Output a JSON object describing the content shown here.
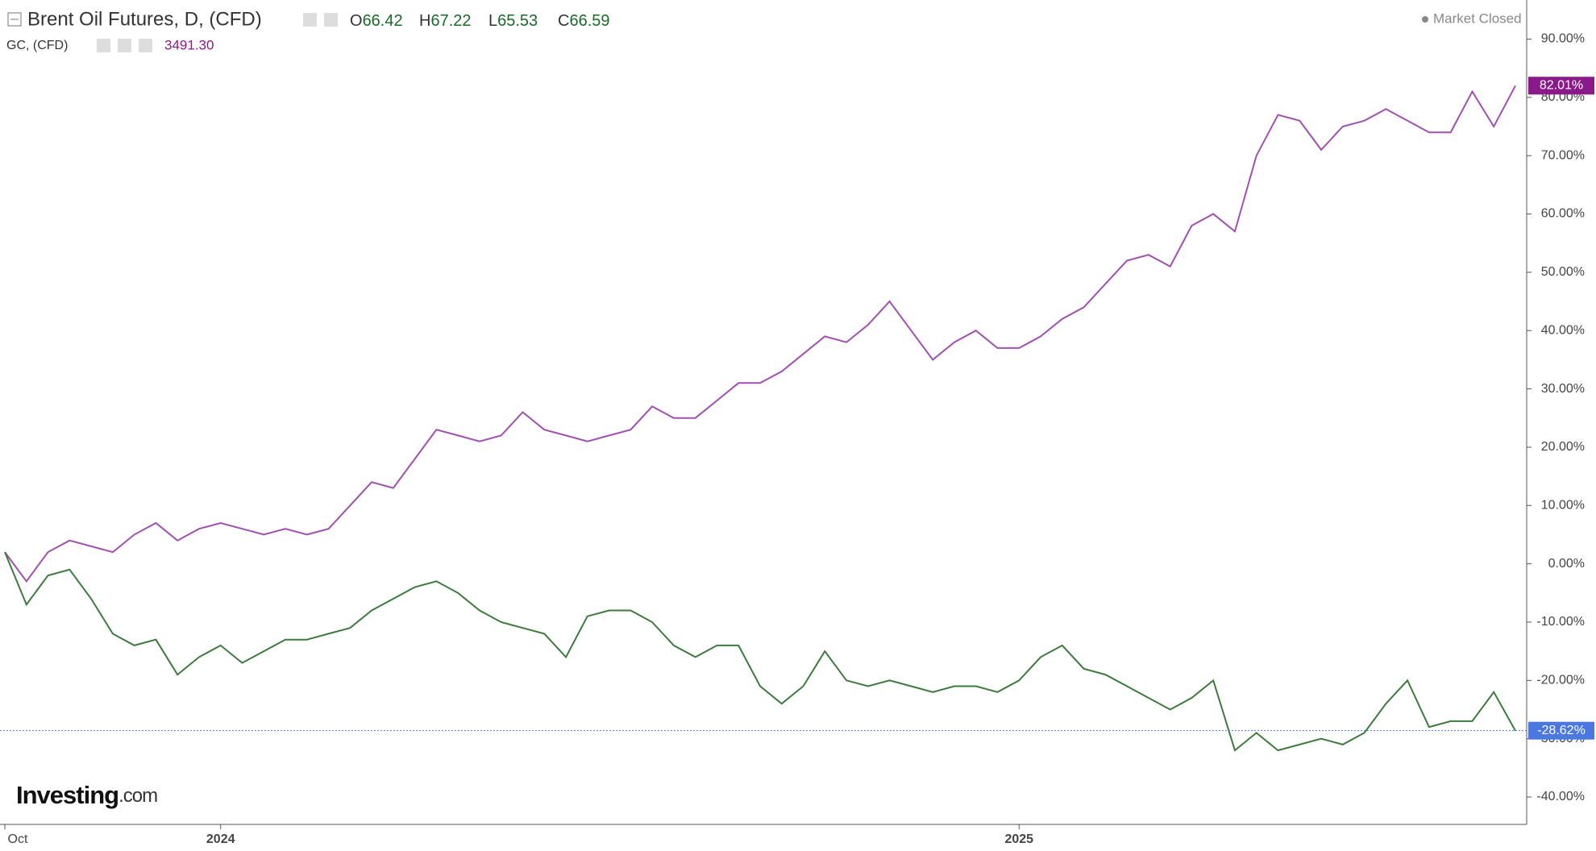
{
  "chart_data": {
    "type": "line",
    "title": "Brent Oil Futures, D, (CFD)",
    "ohlc": [
      {
        "label": "O",
        "value": 66.42
      },
      {
        "label": "H",
        "value": 67.22
      },
      {
        "label": "L",
        "value": 65.53
      },
      {
        "label": "C",
        "value": 66.59
      }
    ],
    "compare_name": "GC, (CFD)",
    "compare_value": "3491.30",
    "status": "Market Closed",
    "brand": {
      "main": "Investing",
      "suffix": ".com"
    },
    "categories": [
      "Oct",
      null,
      null,
      null,
      null,
      null,
      null,
      null,
      null,
      null,
      "2024",
      null,
      null,
      null,
      null,
      null,
      null,
      null,
      null,
      null,
      null,
      null,
      null,
      null,
      null,
      null,
      null,
      null,
      null,
      null,
      null,
      null,
      null,
      null,
      null,
      null,
      null,
      null,
      null,
      null,
      null,
      null,
      null,
      null,
      null,
      null,
      null,
      "2025",
      null,
      null,
      null,
      null,
      null,
      null,
      null,
      null,
      null,
      null,
      null,
      null,
      null,
      null,
      null,
      null,
      null,
      null,
      null,
      null,
      null,
      null,
      null
    ],
    "series": [
      {
        "name": "GC, (CFD)",
        "color": "#a050b0",
        "last_value_label": "82.01%",
        "label_color": "#8a1a8a",
        "values": [
          2,
          -3,
          2,
          4,
          3,
          2,
          5,
          7,
          4,
          6,
          7,
          6,
          5,
          6,
          5,
          6,
          10,
          14,
          13,
          18,
          23,
          22,
          21,
          22,
          26,
          23,
          22,
          21,
          22,
          23,
          27,
          25,
          25,
          28,
          31,
          31,
          33,
          36,
          39,
          38,
          41,
          45,
          40,
          35,
          38,
          40,
          37,
          37,
          39,
          42,
          44,
          48,
          52,
          53,
          51,
          58,
          60,
          57,
          70,
          77,
          76,
          71,
          75,
          76,
          78,
          76,
          74,
          74,
          81,
          75,
          82.01
        ]
      },
      {
        "name": "Brent Oil Futures, D, (CFD)",
        "color": "#3d7a3d",
        "last_value_label": "-28.62%",
        "label_color": "#4a78e0",
        "values": [
          2,
          -7,
          -2,
          -1,
          -6,
          -12,
          -14,
          -13,
          -19,
          -16,
          -14,
          -17,
          -15,
          -13,
          -13,
          -12,
          -11,
          -8,
          -6,
          -4,
          -3,
          -5,
          -8,
          -10,
          -11,
          -12,
          -16,
          -9,
          -8,
          -8,
          -10,
          -14,
          -16,
          -14,
          -14,
          -21,
          -24,
          -21,
          -15,
          -20,
          -21,
          -20,
          -21,
          -22,
          -21,
          -21,
          -22,
          -20,
          -16,
          -14,
          -18,
          -19,
          -21,
          -23,
          -25,
          -23,
          -20,
          -32,
          -29,
          -32,
          -31,
          -30,
          -31,
          -29,
          -24,
          -20,
          -28,
          -27,
          -27,
          -22,
          -28.62
        ]
      }
    ],
    "ylim": [
      -44.7,
      96.7
    ],
    "yticks": [
      {
        "value": -40,
        "label": "-40.00%"
      },
      {
        "value": -30,
        "label": "-30.00%"
      },
      {
        "value": -20,
        "label": "-20.00%"
      },
      {
        "value": -10,
        "label": "-10.00%"
      },
      {
        "value": 0,
        "label": "0.00%"
      },
      {
        "value": 10,
        "label": "10.00%"
      },
      {
        "value": 20,
        "label": "20.00%"
      },
      {
        "value": 30,
        "label": "30.00%"
      },
      {
        "value": 40,
        "label": "40.00%"
      },
      {
        "value": 50,
        "label": "50.00%"
      },
      {
        "value": 60,
        "label": "60.00%"
      },
      {
        "value": 70,
        "label": "70.00%"
      },
      {
        "value": 80,
        "label": "80.00%"
      },
      {
        "value": 90,
        "label": "90.00%"
      }
    ],
    "grid": false
  }
}
